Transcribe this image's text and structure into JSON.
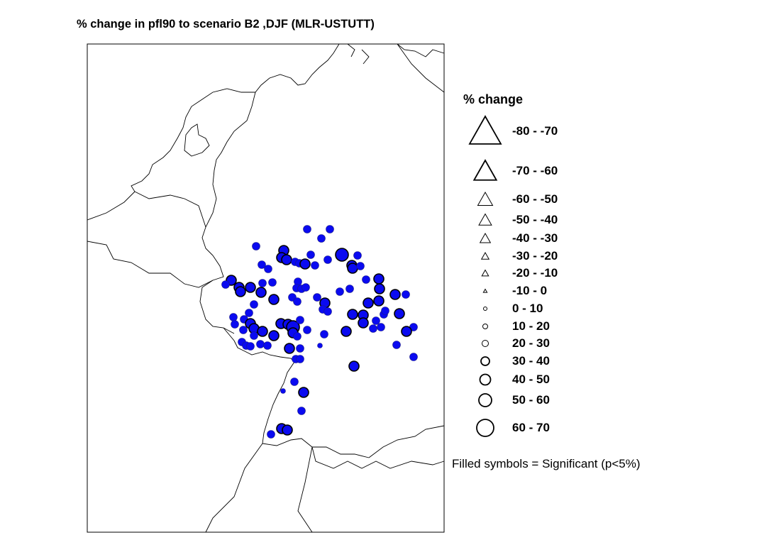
{
  "title": "% change in pfl90 to scenario B2 ,DJF (MLR-USTUTT)",
  "legend": {
    "title": "% change",
    "classes": [
      {
        "label": "-80 - -70",
        "symbol": "triangle"
      },
      {
        "label": "-70 - -60",
        "symbol": "triangle"
      },
      {
        "label": "-60 - -50",
        "symbol": "triangle"
      },
      {
        "label": "-50 - -40",
        "symbol": "triangle"
      },
      {
        "label": "-40 - -30",
        "symbol": "triangle"
      },
      {
        "label": "-30 - -20",
        "symbol": "triangle"
      },
      {
        "label": "-20 - -10",
        "symbol": "triangle"
      },
      {
        "label": "-10 - 0",
        "symbol": "triangle"
      },
      {
        "label": "0 - 10",
        "symbol": "circle"
      },
      {
        "label": "10 - 20",
        "symbol": "circle"
      },
      {
        "label": "20 - 30",
        "symbol": "circle"
      },
      {
        "label": "30 - 40",
        "symbol": "circle"
      },
      {
        "label": "40 - 50",
        "symbol": "circle"
      },
      {
        "label": "50 - 60",
        "symbol": "circle"
      },
      {
        "label": "60 - 70",
        "symbol": "circle"
      }
    ],
    "note": "Filled symbols = Significant (p<5%)"
  },
  "colors": {
    "significant_fill": "#0a0af0",
    "outline": "#000000"
  },
  "stations": [
    "20-30",
    "20-30",
    "20-30",
    "20-30",
    "30-40",
    "30-40",
    "30-40",
    "20-30",
    "20-30",
    "20-30",
    "30-40",
    "20-30",
    "20-30",
    "40-50",
    "20-30",
    "30-40",
    "30-40",
    "20-30",
    "20-30",
    "20-30",
    "30-40",
    "20-30",
    "30-40",
    "30-40",
    "30-40",
    "20-30",
    "20-30",
    "30-40",
    "30-40",
    "20-30",
    "20-30",
    "20-30",
    "20-30",
    "20-30",
    "20-30",
    "20-30",
    "30-40",
    "20-30",
    "20-30",
    "20-30",
    "20-30",
    "20-30",
    "30-40",
    "30-40",
    "30-40",
    "20-30",
    "30-40",
    "30-40",
    "20-30",
    "20-30",
    "20-30",
    "20-30",
    "20-30",
    "30-40",
    "30-40",
    "20-30",
    "30-40",
    "20-30",
    "30-40",
    "30-40",
    "30-40",
    "40-50",
    "30-40",
    "20-30",
    "20-30",
    "20-30",
    "20-30",
    "10-20",
    "30-40",
    "30-40",
    "30-40",
    "30-40",
    "20-30",
    "20-30",
    "20-30",
    "20-30",
    "20-30",
    "30-40",
    "20-30",
    "30-40",
    "20-30",
    "20-30",
    "30-40",
    "20-30",
    "20-30",
    "20-30",
    "20-30",
    "20-30",
    "30-40",
    "20-30",
    "20-30",
    "20-30",
    "20-30",
    "10-20",
    "30-40",
    "20-30",
    "30-40",
    "30-40",
    "20-30"
  ]
}
